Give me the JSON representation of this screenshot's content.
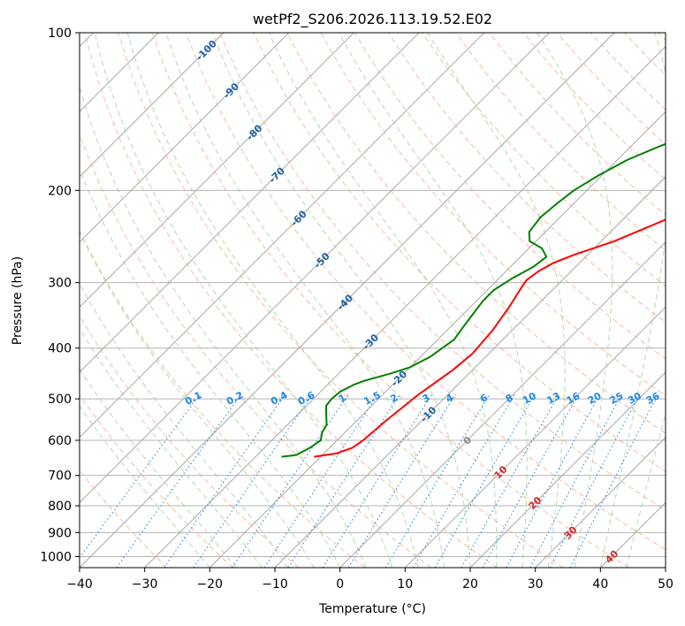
{
  "chart_data": {
    "type": "skew-t",
    "title": "wetPf2_S206.2026.113.19.52.E02",
    "xlabel": "Temperature (°C)",
    "ylabel": "Pressure (hPa)",
    "xlim": [
      -40,
      50
    ],
    "ylim": [
      1050,
      100
    ],
    "x_ticks": [
      -40,
      -30,
      -20,
      -10,
      0,
      10,
      20,
      30,
      40,
      50
    ],
    "y_ticks": [
      1000,
      900,
      800,
      700,
      600,
      500,
      400,
      300,
      200,
      100
    ],
    "colors": {
      "temperature": "#ff0000",
      "dewpoint": "#008000",
      "dry_adiabat": "#f4a582",
      "moist_adiabat": "#a6d3a0",
      "mixing_ratio": "#2b8be0",
      "isotherm": "#888888",
      "isotherm_label": "#1f5fa0",
      "theta_label": "#d62728",
      "ml_label": "#1e88e5"
    },
    "series": [
      {
        "name": "Temperature",
        "points": [
          [
            -21,
            645
          ],
          [
            -18,
            635
          ],
          [
            -16.5,
            620
          ],
          [
            -16,
            600
          ],
          [
            -15.5,
            550
          ],
          [
            -14.5,
            490
          ],
          [
            -13,
            440
          ],
          [
            -12.5,
            410
          ],
          [
            -13,
            370
          ],
          [
            -14,
            335
          ],
          [
            -15,
            310
          ],
          [
            -15.5,
            297
          ],
          [
            -15,
            285
          ],
          [
            -14,
            275
          ],
          [
            -12,
            265
          ],
          [
            -8,
            250
          ],
          [
            -5,
            235
          ],
          [
            0,
            212
          ],
          [
            2,
            200
          ],
          [
            5,
            185
          ],
          [
            6,
            175
          ],
          [
            7,
            160
          ],
          [
            8,
            145
          ],
          [
            9,
            130
          ],
          [
            10,
            115
          ],
          [
            11,
            105
          ],
          [
            11,
            100
          ]
        ]
      },
      {
        "name": "Dewpoint",
        "points": [
          [
            -26,
            645
          ],
          [
            -24,
            640
          ],
          [
            -23,
            620
          ],
          [
            -22.5,
            600
          ],
          [
            -23.5,
            580
          ],
          [
            -24,
            560
          ],
          [
            -25,
            545
          ],
          [
            -26,
            530
          ],
          [
            -27,
            515
          ],
          [
            -27.2,
            500
          ],
          [
            -27,
            485
          ],
          [
            -26,
            470
          ],
          [
            -25,
            462
          ],
          [
            -22,
            447
          ],
          [
            -20,
            435
          ],
          [
            -18.5,
            415
          ],
          [
            -18,
            400
          ],
          [
            -17.5,
            385
          ],
          [
            -18,
            365
          ],
          [
            -18.5,
            345
          ],
          [
            -19,
            325
          ],
          [
            -19,
            310
          ],
          [
            -18,
            295
          ],
          [
            -16.5,
            280
          ],
          [
            -16,
            268
          ],
          [
            -18,
            258
          ],
          [
            -21,
            250
          ],
          [
            -22.5,
            240
          ],
          [
            -23,
            225
          ],
          [
            -22.5,
            210
          ],
          [
            -22,
            200
          ],
          [
            -20.5,
            187
          ],
          [
            -18.5,
            175
          ],
          [
            -16,
            166
          ],
          [
            -13,
            157
          ],
          [
            -10,
            147
          ],
          [
            -7,
            135
          ],
          [
            -5,
            125
          ],
          [
            -3,
            115
          ],
          [
            -1,
            106
          ],
          [
            0,
            100
          ]
        ]
      }
    ],
    "isotherm_labels": [
      "-100",
      "-90",
      "-80",
      "-70",
      "-60",
      "-50",
      "-40",
      "-30",
      "-20",
      "-10",
      "0",
      "10",
      "20",
      "30",
      "40"
    ],
    "isotherm_label_values": [
      -100,
      -90,
      -80,
      -70,
      -60,
      -50,
      -40,
      -30,
      -20,
      -10,
      0,
      10,
      20,
      30,
      40
    ],
    "mixing_ratio_labels": [
      "0.1",
      "0.2",
      "0.4",
      "0.6",
      "1",
      "1.5",
      "2",
      "3",
      "4",
      "6",
      "8",
      "10",
      "13",
      "16",
      "20",
      "25",
      "30",
      "36"
    ],
    "mixing_ratio_values": [
      0.1,
      0.2,
      0.4,
      0.6,
      1,
      1.5,
      2,
      3,
      4,
      6,
      8,
      10,
      13,
      16,
      20,
      25,
      30,
      36
    ]
  }
}
